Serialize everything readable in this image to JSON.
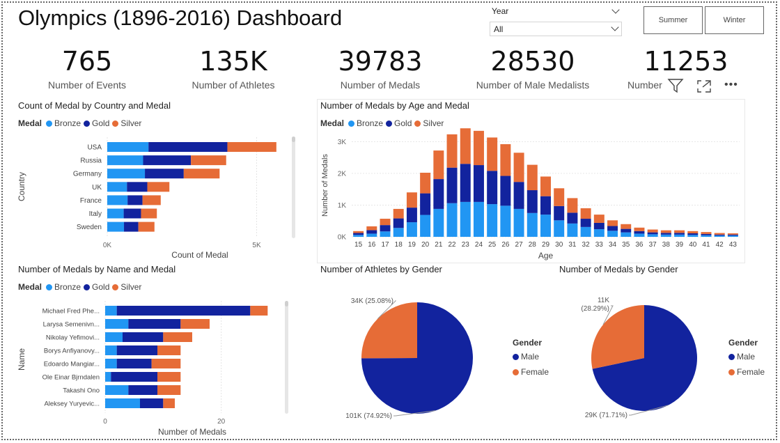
{
  "title": "Olympics (1896-2016) Dashboard",
  "slicer": {
    "label": "Year",
    "value": "All"
  },
  "buttons": {
    "summer": "Summer",
    "winter": "Winter"
  },
  "kpis": [
    {
      "value": "765",
      "label": "Number of Events"
    },
    {
      "value": "135K",
      "label": "Number of Athletes"
    },
    {
      "value": "39783",
      "label": "Number of Medals"
    },
    {
      "value": "28530",
      "label": "Number of Male Medalists"
    },
    {
      "value": "11253",
      "label": "Number"
    }
  ],
  "colors": {
    "bronze": "#2196f3",
    "gold": "#12239e",
    "silver": "#e66c37"
  },
  "legend": {
    "title": "Medal",
    "bronze": "Bronze",
    "gold": "Gold",
    "silver": "Silver"
  },
  "chart_data": [
    {
      "type": "bar",
      "orientation": "horizontal-stacked",
      "title": "Count of Medal by Country and Medal",
      "xlabel": "Count of Medal",
      "ylabel": "Country",
      "categories": [
        "USA",
        "Russia",
        "Germany",
        "UK",
        "France",
        "Italy",
        "Sweden"
      ],
      "series": [
        {
          "name": "Bronze",
          "values": [
            1380,
            1200,
            1260,
            660,
            680,
            550,
            560
          ]
        },
        {
          "name": "Gold",
          "values": [
            2640,
            1600,
            1300,
            680,
            500,
            580,
            480
          ]
        },
        {
          "name": "Silver",
          "values": [
            1640,
            1180,
            1200,
            740,
            610,
            530,
            540
          ]
        }
      ],
      "xlim": [
        0,
        6200
      ],
      "xticks": [
        "0K",
        "5K"
      ],
      "xtick_values": [
        0,
        5000
      ],
      "grid": true
    },
    {
      "type": "bar",
      "orientation": "vertical-stacked",
      "title": "Number of Medals by Age and Medal",
      "xlabel": "Age",
      "ylabel": "Number of Medals",
      "categories": [
        "15",
        "16",
        "17",
        "18",
        "19",
        "20",
        "21",
        "22",
        "23",
        "24",
        "25",
        "26",
        "27",
        "28",
        "29",
        "30",
        "31",
        "32",
        "33",
        "34",
        "35",
        "36",
        "37",
        "38",
        "39",
        "40",
        "41",
        "42",
        "43"
      ],
      "series": [
        {
          "name": "Bronze",
          "values": [
            60,
            100,
            170,
            280,
            460,
            690,
            880,
            1060,
            1100,
            1100,
            1030,
            980,
            880,
            750,
            700,
            520,
            420,
            310,
            240,
            190,
            140,
            100,
            80,
            70,
            70,
            60,
            50,
            40,
            40
          ]
        },
        {
          "name": "Gold",
          "values": [
            60,
            110,
            200,
            300,
            460,
            680,
            940,
            1120,
            1200,
            1160,
            1050,
            940,
            850,
            720,
            580,
            450,
            340,
            260,
            200,
            150,
            110,
            80,
            60,
            55,
            55,
            50,
            40,
            30,
            30
          ]
        },
        {
          "name": "Silver",
          "values": [
            60,
            120,
            200,
            300,
            480,
            650,
            900,
            1050,
            1120,
            1080,
            1050,
            1000,
            920,
            800,
            620,
            560,
            460,
            330,
            260,
            180,
            150,
            110,
            90,
            80,
            80,
            70,
            60,
            50,
            40
          ]
        }
      ],
      "ylim": [
        0,
        3600
      ],
      "yticks": [
        "0K",
        "1K",
        "2K",
        "3K"
      ],
      "ytick_values": [
        0,
        1000,
        2000,
        3000
      ]
    },
    {
      "type": "bar",
      "orientation": "horizontal-stacked",
      "title": "Number of Medals by Name and Medal",
      "xlabel": "Number of Medals",
      "ylabel": "Name",
      "categories": [
        "Michael Fred Phe...",
        "Larysa Semenivn...",
        "Nikolay Yefimovi...",
        "Borys Anfiyanovy...",
        "Edoardo Mangiar...",
        "Ole Einar Bjrndalen",
        "Takashi Ono",
        "Aleksey Yuryevic..."
      ],
      "series": [
        {
          "name": "Bronze",
          "values": [
            2,
            4,
            3,
            2,
            2,
            1,
            4,
            6
          ]
        },
        {
          "name": "Gold",
          "values": [
            23,
            9,
            7,
            7,
            6,
            8,
            5,
            4
          ]
        },
        {
          "name": "Silver",
          "values": [
            3,
            5,
            5,
            4,
            5,
            4,
            4,
            2
          ]
        }
      ],
      "xlim": [
        0,
        30
      ],
      "xticks": [
        "0",
        "20"
      ],
      "xtick_values": [
        0,
        20
      ]
    },
    {
      "type": "pie",
      "title": "Number of Athletes by Gender",
      "legend_title": "Gender",
      "labels": [
        "Male",
        "Female"
      ],
      "values": [
        74.92,
        25.08
      ],
      "data_labels": [
        "101K (74.92%)",
        "34K (25.08%)"
      ]
    },
    {
      "type": "pie",
      "title": "Number of Medals by Gender",
      "legend_title": "Gender",
      "labels": [
        "Male",
        "Female"
      ],
      "values": [
        71.71,
        28.29
      ],
      "data_labels": [
        "29K (71.71%)",
        "11K (28.29%)"
      ]
    }
  ]
}
